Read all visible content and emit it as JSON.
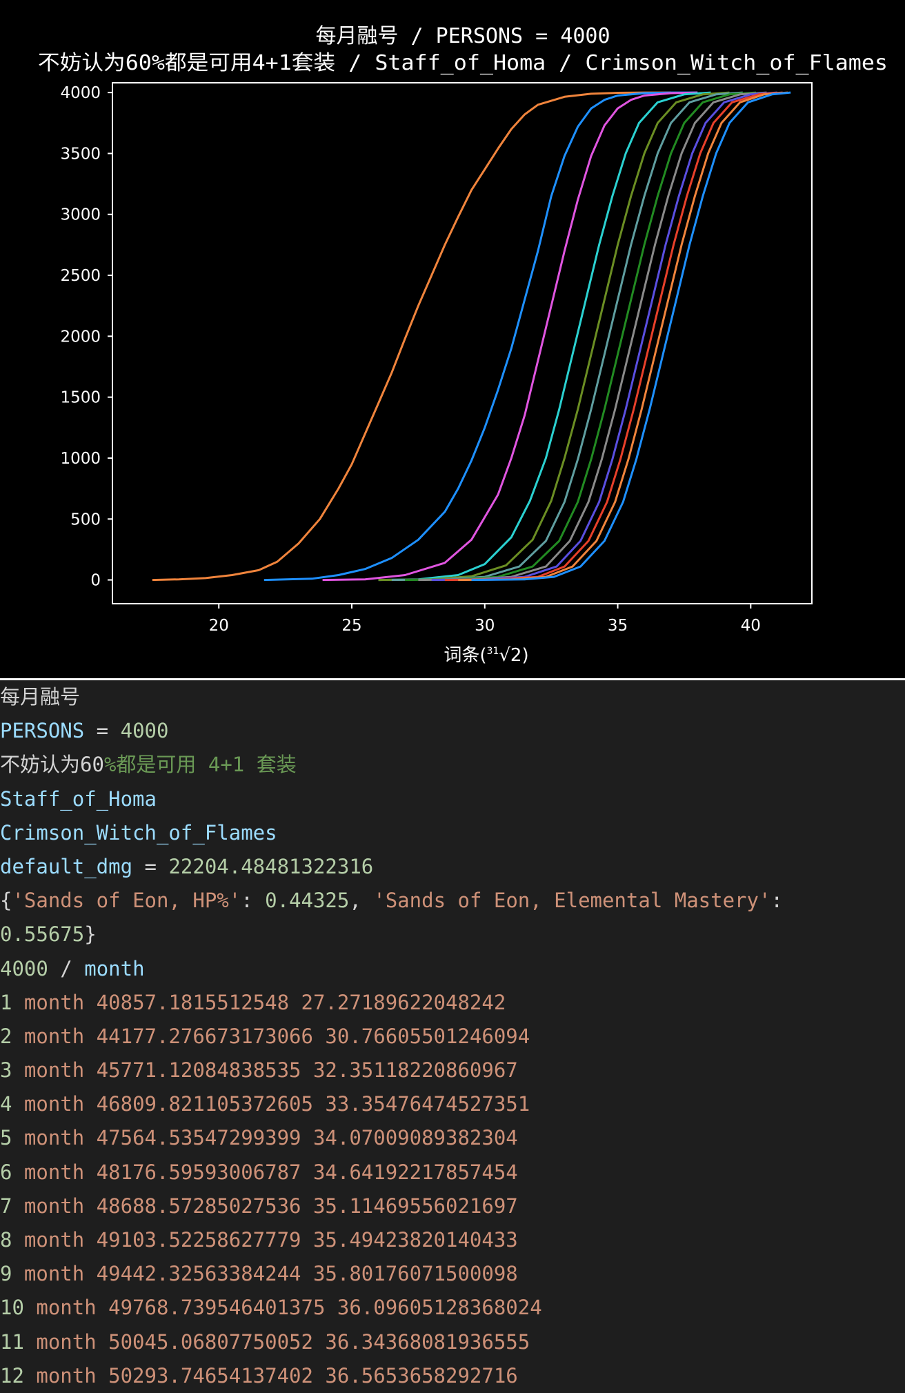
{
  "chart_data": {
    "type": "line",
    "title_line1": "每月融号 / PERSONS = 4000",
    "title_line2": "不妨认为60%都是可用4+1套装 / Staff_of_Homa / Crimson_Witch_of_Flames",
    "xlabel": "词条(",
    "xlabel_radical": "√2)",
    "xlabel_index": "31",
    "xlim": [
      16,
      42.3
    ],
    "ylim": [
      -195,
      4080
    ],
    "xticks": [
      "20",
      "25",
      "30",
      "35",
      "40"
    ],
    "yticks": [
      "0",
      "500",
      "1000",
      "1500",
      "2000",
      "2500",
      "3000",
      "3500",
      "4000"
    ],
    "background": "#000000",
    "axes_color": "#ffffff",
    "series": [
      {
        "color": "#f0843c",
        "x": [
          17.5,
          18.5,
          19.5,
          20.5,
          21.5,
          22.2,
          23.0,
          23.8,
          24.5,
          25.0,
          25.5,
          26.0,
          26.5,
          27.0,
          27.5,
          28.0,
          28.5,
          29.0,
          29.5,
          30.0,
          30.5,
          31.0,
          31.5,
          32.0,
          33.0,
          34.0,
          35.0,
          36.0,
          37.0
        ],
        "y": [
          0,
          5,
          15,
          40,
          80,
          150,
          300,
          500,
          750,
          950,
          1200,
          1450,
          1700,
          1980,
          2250,
          2500,
          2750,
          2980,
          3200,
          3370,
          3540,
          3700,
          3820,
          3900,
          3965,
          3990,
          3998,
          4000,
          4000
        ]
      },
      {
        "color": "#1e90ff",
        "x": [
          21.7,
          23.5,
          24.5,
          25.5,
          26.5,
          27.5,
          28.5,
          29.0,
          29.5,
          30.0,
          30.5,
          31.0,
          31.5,
          32.0,
          32.5,
          33.0,
          33.5,
          34.0,
          34.5,
          35.0,
          36.0,
          37.0,
          38.0
        ],
        "y": [
          0,
          10,
          40,
          90,
          180,
          330,
          560,
          750,
          980,
          1250,
          1560,
          1900,
          2300,
          2700,
          3150,
          3480,
          3720,
          3870,
          3940,
          3975,
          3995,
          4000,
          4000
        ]
      },
      {
        "color": "#e055e0",
        "x": [
          23.9,
          25.5,
          27.0,
          28.5,
          29.5,
          30.5,
          31.0,
          31.5,
          32.0,
          32.5,
          33.0,
          33.5,
          34.0,
          34.5,
          35.0,
          35.5,
          36.0,
          37.0,
          38.0
        ],
        "y": [
          0,
          5,
          40,
          140,
          330,
          700,
          1000,
          1350,
          1800,
          2250,
          2700,
          3120,
          3480,
          3730,
          3870,
          3940,
          3975,
          3995,
          4000
        ]
      },
      {
        "color": "#2bd1d1",
        "x": [
          26.0,
          27.5,
          29.0,
          30.0,
          31.0,
          31.7,
          32.3,
          32.8,
          33.3,
          33.8,
          34.3,
          34.8,
          35.3,
          35.8,
          36.5,
          37.5,
          38.5
        ],
        "y": [
          0,
          5,
          40,
          130,
          350,
          650,
          1000,
          1400,
          1850,
          2300,
          2750,
          3150,
          3500,
          3750,
          3920,
          3985,
          4000
        ]
      },
      {
        "color": "#6b8e23",
        "x": [
          26.0,
          28.0,
          29.5,
          30.8,
          31.8,
          32.5,
          33.0,
          33.5,
          34.0,
          34.5,
          35.0,
          35.5,
          36.0,
          36.5,
          37.2,
          38.2,
          39.2
        ],
        "y": [
          0,
          5,
          30,
          120,
          330,
          650,
          1000,
          1400,
          1850,
          2300,
          2750,
          3150,
          3500,
          3750,
          3920,
          3985,
          4000
        ]
      },
      {
        "color": "#5f9ea0",
        "x": [
          26.5,
          28.5,
          30.0,
          31.3,
          32.3,
          33.0,
          33.5,
          34.0,
          34.5,
          35.0,
          35.5,
          36.0,
          36.5,
          37.0,
          37.7,
          38.7,
          39.7
        ],
        "y": [
          0,
          5,
          25,
          110,
          320,
          640,
          990,
          1400,
          1850,
          2300,
          2750,
          3150,
          3500,
          3750,
          3920,
          3985,
          4000
        ]
      },
      {
        "color": "#228b22",
        "x": [
          27.0,
          29.0,
          30.5,
          31.8,
          32.8,
          33.5,
          34.0,
          34.5,
          35.0,
          35.5,
          36.0,
          36.5,
          37.0,
          37.5,
          38.2,
          39.2,
          40.2
        ],
        "y": [
          0,
          5,
          25,
          110,
          320,
          640,
          990,
          1400,
          1850,
          2300,
          2750,
          3150,
          3500,
          3750,
          3920,
          3985,
          4000
        ]
      },
      {
        "color": "#8a8a8a",
        "x": [
          27.5,
          29.5,
          31.0,
          32.3,
          33.2,
          33.9,
          34.4,
          34.9,
          35.4,
          35.9,
          36.4,
          36.9,
          37.4,
          37.9,
          38.6,
          39.6,
          40.6
        ],
        "y": [
          0,
          5,
          25,
          110,
          320,
          640,
          990,
          1400,
          1850,
          2300,
          2750,
          3150,
          3500,
          3750,
          3920,
          3985,
          4000
        ]
      },
      {
        "color": "#5a4fe0",
        "x": [
          28.0,
          30.0,
          31.5,
          32.7,
          33.6,
          34.3,
          34.8,
          35.3,
          35.8,
          36.3,
          36.8,
          37.3,
          37.8,
          38.3,
          39.0,
          40.0,
          41.0
        ],
        "y": [
          0,
          5,
          25,
          110,
          320,
          640,
          990,
          1400,
          1850,
          2300,
          2750,
          3150,
          3500,
          3750,
          3920,
          3985,
          4000
        ]
      },
      {
        "color": "#e8402a",
        "x": [
          28.5,
          30.5,
          32.0,
          33.0,
          33.9,
          34.6,
          35.1,
          35.6,
          36.1,
          36.6,
          37.1,
          37.6,
          38.1,
          38.6,
          39.3,
          40.3,
          41.2
        ],
        "y": [
          0,
          5,
          25,
          110,
          320,
          640,
          990,
          1400,
          1850,
          2300,
          2750,
          3150,
          3500,
          3750,
          3920,
          3985,
          4000
        ]
      },
      {
        "color": "#f0843c",
        "x": [
          29.0,
          31.0,
          32.3,
          33.3,
          34.2,
          34.9,
          35.4,
          35.9,
          36.4,
          36.9,
          37.4,
          37.9,
          38.4,
          38.9,
          39.6,
          40.5,
          41.4
        ],
        "y": [
          0,
          5,
          25,
          110,
          320,
          640,
          990,
          1400,
          1850,
          2300,
          2750,
          3150,
          3500,
          3750,
          3920,
          3985,
          4000
        ]
      },
      {
        "color": "#1e90ff",
        "x": [
          29.5,
          31.5,
          32.6,
          33.6,
          34.5,
          35.2,
          35.7,
          36.2,
          36.7,
          37.2,
          37.7,
          38.2,
          38.7,
          39.2,
          39.9,
          40.8,
          41.5
        ],
        "y": [
          0,
          5,
          25,
          110,
          320,
          640,
          990,
          1400,
          1850,
          2300,
          2750,
          3150,
          3500,
          3750,
          3920,
          3985,
          4000
        ]
      }
    ]
  },
  "console": {
    "lines": [
      {
        "segments": [
          {
            "text": "每月融号",
            "cls": "c-default cjk"
          }
        ]
      },
      {
        "segments": [
          {
            "text": "PERSONS",
            "cls": "c-var"
          },
          {
            "text": " = ",
            "cls": "c-default"
          },
          {
            "text": "4000",
            "cls": "c-num"
          }
        ]
      },
      {
        "segments": [
          {
            "text": "不妨认为",
            "cls": "c-default cjk"
          },
          {
            "text": "60",
            "cls": "c-default"
          },
          {
            "text": "%都是可用 4+1 套装",
            "cls": "c-comment"
          }
        ]
      },
      {
        "segments": [
          {
            "text": "Staff_of_Homa",
            "cls": "c-var"
          }
        ]
      },
      {
        "segments": [
          {
            "text": "Crimson_Witch_of_Flames",
            "cls": "c-var"
          }
        ]
      },
      {
        "segments": [
          {
            "text": "default_dmg",
            "cls": "c-var"
          },
          {
            "text": " = ",
            "cls": "c-default"
          },
          {
            "text": "22204.48481322316",
            "cls": "c-num"
          }
        ]
      },
      {
        "segments": [
          {
            "text": "{",
            "cls": "c-default"
          },
          {
            "text": "'Sands of Eon, HP%'",
            "cls": "c-str"
          },
          {
            "text": ": ",
            "cls": "c-default"
          },
          {
            "text": "0.44325",
            "cls": "c-num"
          },
          {
            "text": ", ",
            "cls": "c-default"
          },
          {
            "text": "'Sands of Eon, Elemental Mastery'",
            "cls": "c-str"
          },
          {
            "text": ":",
            "cls": "c-default"
          }
        ]
      },
      {
        "segments": [
          {
            "text": "0.55675",
            "cls": "c-num"
          },
          {
            "text": "}",
            "cls": "c-default"
          }
        ]
      },
      {
        "segments": [
          {
            "text": "4000",
            "cls": "c-num"
          },
          {
            "text": " / ",
            "cls": "c-default"
          },
          {
            "text": "month",
            "cls": "c-var"
          }
        ]
      },
      {
        "segments": [
          {
            "text": "1",
            "cls": "c-num"
          },
          {
            "text": " month 40857.1815512548 27.27189622048242",
            "cls": "c-str"
          }
        ]
      },
      {
        "segments": [
          {
            "text": "2",
            "cls": "c-num"
          },
          {
            "text": " month 44177.276673173066 30.76605501246094",
            "cls": "c-str"
          }
        ]
      },
      {
        "segments": [
          {
            "text": "3",
            "cls": "c-num"
          },
          {
            "text": " month 45771.12084838535 32.35118220860967",
            "cls": "c-str"
          }
        ]
      },
      {
        "segments": [
          {
            "text": "4",
            "cls": "c-num"
          },
          {
            "text": " month 46809.821105372605 33.35476474527351",
            "cls": "c-str"
          }
        ]
      },
      {
        "segments": [
          {
            "text": "5",
            "cls": "c-num"
          },
          {
            "text": " month 47564.53547299399 34.07009089382304",
            "cls": "c-str"
          }
        ]
      },
      {
        "segments": [
          {
            "text": "6",
            "cls": "c-num"
          },
          {
            "text": " month 48176.59593006787 34.64192217857454",
            "cls": "c-str"
          }
        ]
      },
      {
        "segments": [
          {
            "text": "7",
            "cls": "c-num"
          },
          {
            "text": " month 48688.57285027536 35.11469556021697",
            "cls": "c-str"
          }
        ]
      },
      {
        "segments": [
          {
            "text": "8",
            "cls": "c-num"
          },
          {
            "text": " month 49103.52258627779 35.49423820140433",
            "cls": "c-str"
          }
        ]
      },
      {
        "segments": [
          {
            "text": "9",
            "cls": "c-num"
          },
          {
            "text": " month 49442.32563384244 35.80176071500098",
            "cls": "c-str"
          }
        ]
      },
      {
        "segments": [
          {
            "text": "10",
            "cls": "c-num"
          },
          {
            "text": " month 49768.739546401375 36.09605128368024",
            "cls": "c-str"
          }
        ]
      },
      {
        "segments": [
          {
            "text": "11",
            "cls": "c-num"
          },
          {
            "text": " month 50045.06807750052 36.34368081936555",
            "cls": "c-str"
          }
        ]
      },
      {
        "segments": [
          {
            "text": "12",
            "cls": "c-num"
          },
          {
            "text": " month 50293.74654137402 36.5653658292716",
            "cls": "c-str"
          }
        ]
      }
    ]
  }
}
